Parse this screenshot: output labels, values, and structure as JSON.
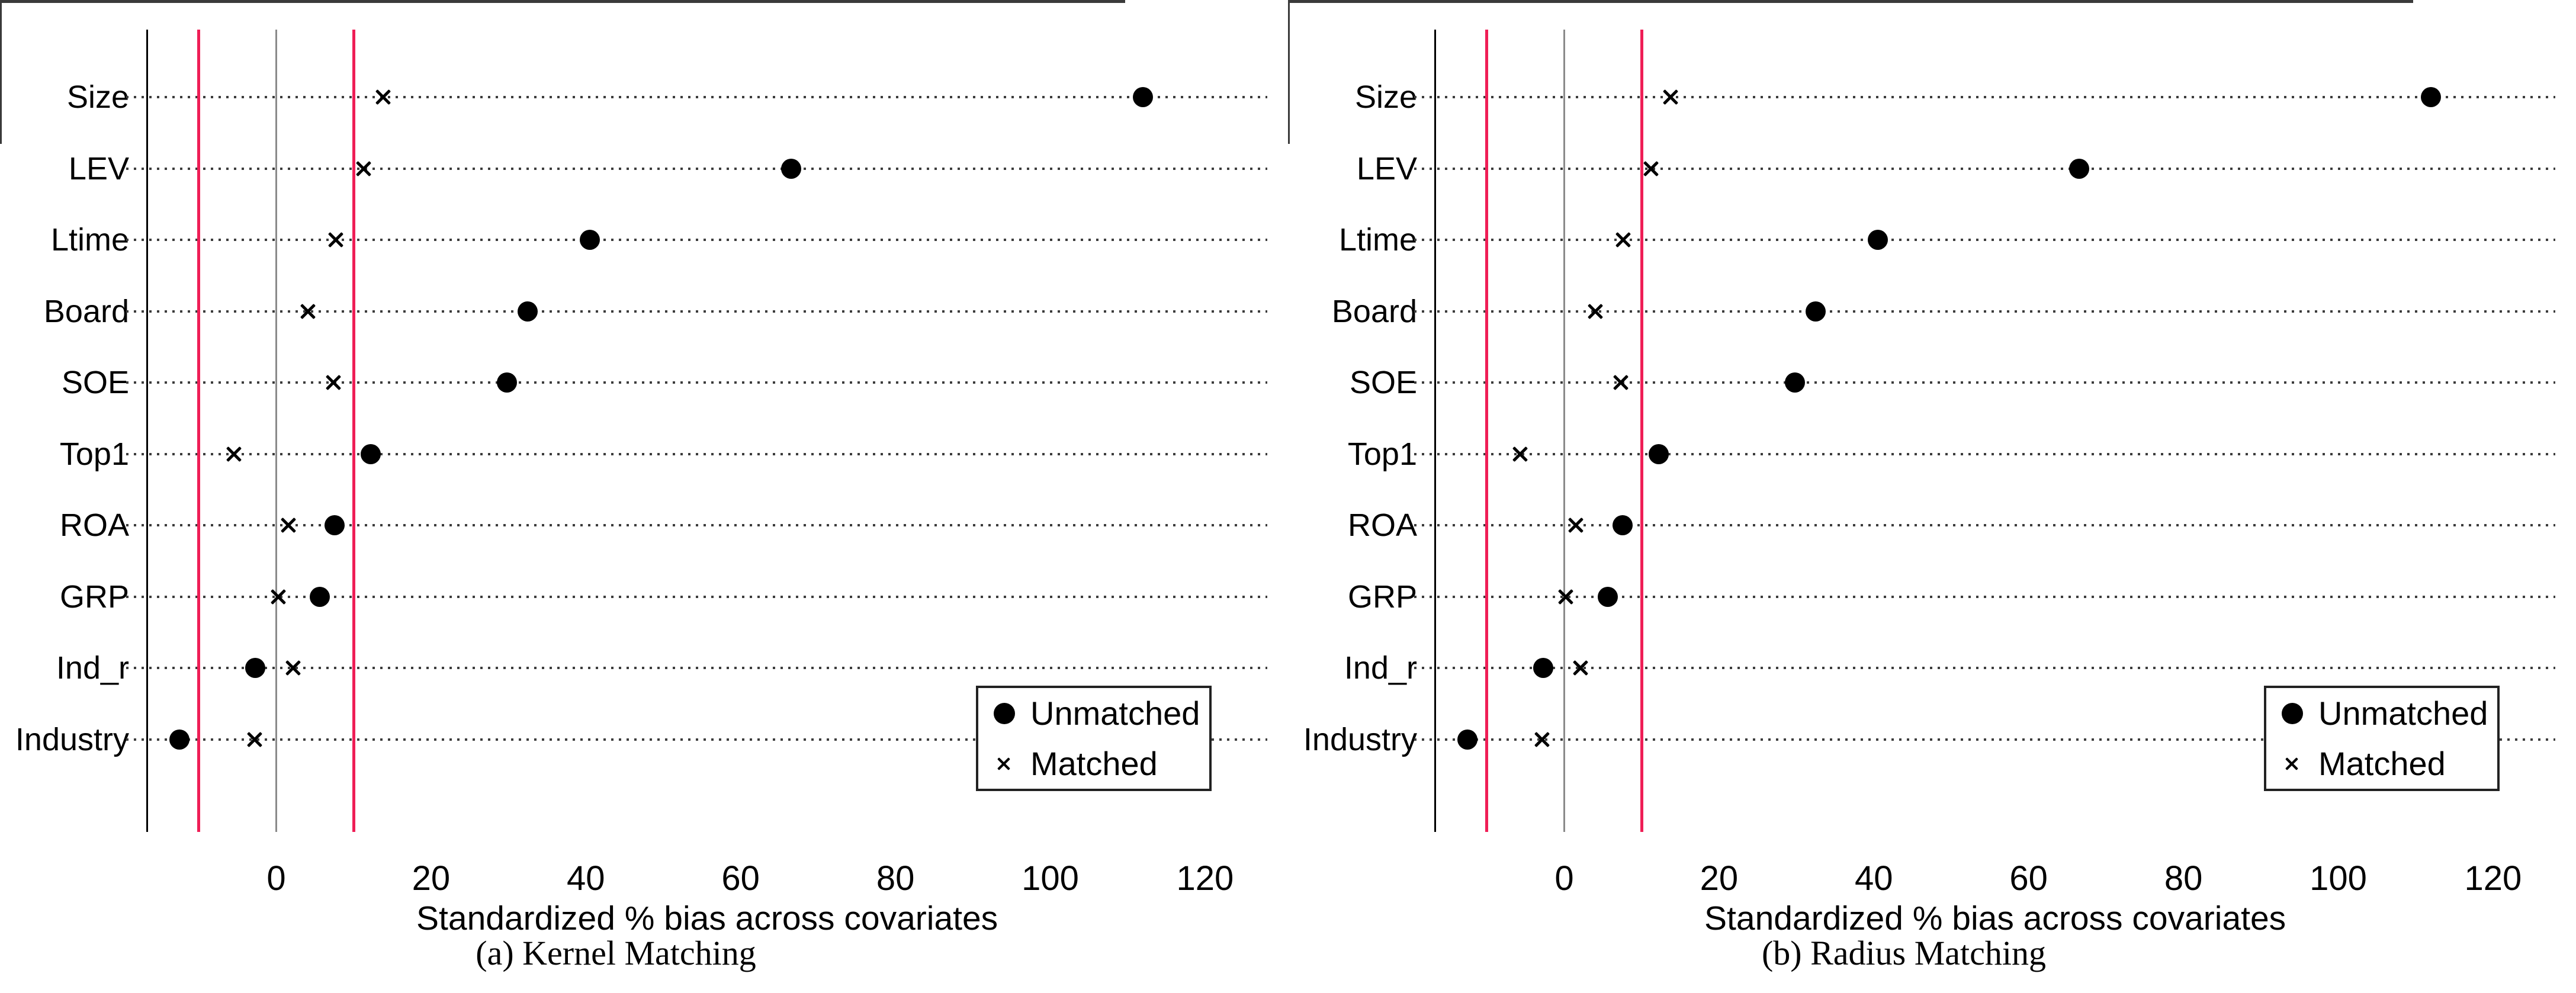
{
  "figure": {
    "background": "#ffffff",
    "text_color": "#000000",
    "accent_red": "#ef1e56",
    "zero_line_gray": "#8a8a8a",
    "marker_color": "#000000"
  },
  "chart_data": [
    {
      "type": "scatter",
      "title": "(a) Kernel Matching",
      "xlabel": "Standardized % bias across covariates",
      "categories": [
        "Size",
        "LEV",
        "Ltime",
        "Board",
        "SOE",
        "Top1",
        "ROA",
        "GRP",
        "Ind_r",
        "Industry"
      ],
      "x_ticks": [
        0,
        20,
        40,
        60,
        80,
        100,
        120
      ],
      "xlim": [
        -16.7,
        128
      ],
      "grid": "dotted-horizontal-rows",
      "legend_position": "bottom-right",
      "legend_entries": [
        "Unmatched",
        "Matched"
      ],
      "reference_lines": [
        {
          "x": -10,
          "color": "#ef1e56",
          "width": 5
        },
        {
          "x": 0,
          "color": "#8a8a8a",
          "width": 3
        },
        {
          "x": 10,
          "color": "#ef1e56",
          "width": 5
        }
      ],
      "series": [
        {
          "name": "Unmatched",
          "marker": "circle",
          "color": "#000000",
          "values": [
            112,
            66.5,
            40.5,
            32.5,
            29.8,
            12.2,
            7.5,
            5.6,
            -2.7,
            -12.5
          ]
        },
        {
          "name": "Matched",
          "marker": "x",
          "color": "#000000",
          "values": [
            13.8,
            11.3,
            7.7,
            4.1,
            7.4,
            -5.5,
            1.6,
            0.3,
            2.2,
            -2.8
          ]
        }
      ]
    },
    {
      "type": "scatter",
      "title": "(b) Radius Matching",
      "xlabel": "Standardized % bias across covariates",
      "categories": [
        "Size",
        "LEV",
        "Ltime",
        "Board",
        "SOE",
        "Top1",
        "ROA",
        "GRP",
        "Ind_r",
        "Industry"
      ],
      "x_ticks": [
        0,
        20,
        40,
        60,
        80,
        100,
        120
      ],
      "xlim": [
        -16.7,
        128
      ],
      "grid": "dotted-horizontal-rows",
      "legend_position": "bottom-right",
      "legend_entries": [
        "Unmatched",
        "Matched"
      ],
      "reference_lines": [
        {
          "x": -10,
          "color": "#ef1e56",
          "width": 5
        },
        {
          "x": 0,
          "color": "#8a8a8a",
          "width": 3
        },
        {
          "x": 10,
          "color": "#ef1e56",
          "width": 5
        }
      ],
      "series": [
        {
          "name": "Unmatched",
          "marker": "circle",
          "color": "#000000",
          "values": [
            112,
            66.5,
            40.5,
            32.5,
            29.8,
            12.2,
            7.5,
            5.6,
            -2.7,
            -12.5
          ]
        },
        {
          "name": "Matched",
          "marker": "x",
          "color": "#000000",
          "values": [
            13.7,
            11.2,
            7.6,
            4.0,
            7.3,
            -5.7,
            1.5,
            0.2,
            2.1,
            -2.9
          ]
        }
      ]
    }
  ]
}
